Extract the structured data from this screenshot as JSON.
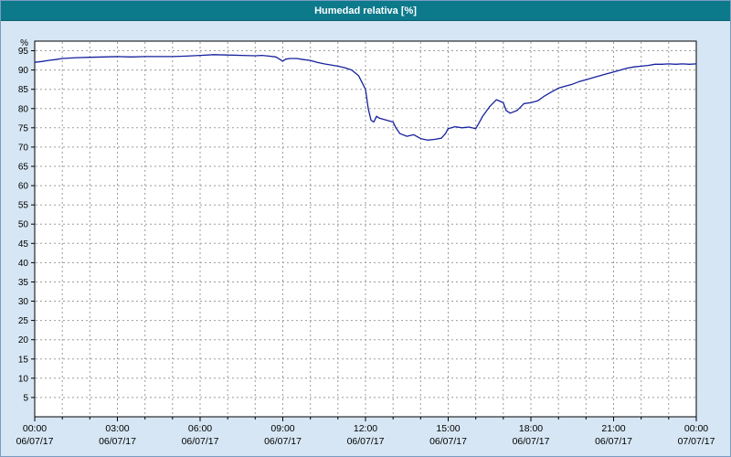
{
  "window": {
    "title": "Humedad relativa [%]"
  },
  "colors": {
    "titlebar": "#0d7a8c",
    "titlebar_text": "#ffffff",
    "background": "#d6e6f4",
    "plot_bg": "#ffffff",
    "grid": "#9b9b9b",
    "axis": "#000000",
    "line": "#16219e"
  },
  "chart_data": {
    "type": "line",
    "title": "Humedad relativa [%]",
    "xlabel": "",
    "ylabel": "%",
    "ylim": [
      0,
      97.5
    ],
    "xlim_hours": [
      0,
      24
    ],
    "grid": "dashed",
    "legend_position": "none",
    "y_ticks": [
      5,
      10,
      15,
      20,
      25,
      30,
      35,
      40,
      45,
      50,
      55,
      60,
      65,
      70,
      75,
      80,
      85,
      90,
      95
    ],
    "x_ticks": [
      {
        "time": "00:00",
        "date": "06/07/17"
      },
      {
        "time": "03:00",
        "date": "06/07/17"
      },
      {
        "time": "06:00",
        "date": "06/07/17"
      },
      {
        "time": "09:00",
        "date": "06/07/17"
      },
      {
        "time": "12:00",
        "date": "06/07/17"
      },
      {
        "time": "15:00",
        "date": "06/07/17"
      },
      {
        "time": "18:00",
        "date": "06/07/17"
      },
      {
        "time": "21:00",
        "date": "06/07/17"
      },
      {
        "time": "00:00",
        "date": "07/07/17"
      }
    ],
    "series": [
      {
        "name": "Humedad relativa",
        "color": "#16219e",
        "x": [
          0,
          0.25,
          0.5,
          0.75,
          1,
          1.5,
          2,
          2.5,
          3,
          3.5,
          4,
          4.5,
          5,
          5.5,
          6,
          6.5,
          7,
          7.5,
          8,
          8.25,
          8.5,
          8.75,
          9,
          9.1,
          9.25,
          9.5,
          9.75,
          10,
          10.25,
          10.5,
          10.75,
          11,
          11.25,
          11.5,
          11.75,
          12,
          12.1,
          12.2,
          12.3,
          12.4,
          12.5,
          12.75,
          13,
          13.1,
          13.25,
          13.5,
          13.75,
          14,
          14.25,
          14.5,
          14.75,
          14.9,
          15,
          15.25,
          15.5,
          15.75,
          16,
          16.1,
          16.25,
          16.5,
          16.75,
          17,
          17.1,
          17.25,
          17.5,
          17.75,
          18,
          18.25,
          18.5,
          18.75,
          19,
          19.25,
          19.5,
          19.75,
          20,
          20.25,
          20.5,
          20.75,
          21,
          21.25,
          21.5,
          21.75,
          22,
          22.25,
          22.5,
          22.75,
          23,
          23.25,
          23.5,
          23.75,
          24
        ],
        "values": [
          92,
          92.2,
          92.5,
          92.7,
          93,
          93.2,
          93.3,
          93.4,
          93.5,
          93.4,
          93.5,
          93.5,
          93.5,
          93.6,
          93.8,
          94,
          93.9,
          93.8,
          93.7,
          93.8,
          93.6,
          93.4,
          92.3,
          92.8,
          93,
          93,
          92.7,
          92.5,
          92,
          91.6,
          91.3,
          91,
          90.6,
          90,
          88.5,
          85,
          80,
          77,
          76.5,
          78,
          77.5,
          77,
          76.5,
          75,
          73.5,
          72.8,
          73.2,
          72.2,
          71.8,
          72,
          72.3,
          73.5,
          74.8,
          75.3,
          75,
          75.2,
          74.8,
          76,
          78,
          80.5,
          82.3,
          81.5,
          79.5,
          78.8,
          79.5,
          81.3,
          81.5,
          82,
          83.3,
          84.3,
          85.3,
          85.8,
          86.3,
          87,
          87.5,
          88,
          88.5,
          89,
          89.5,
          90,
          90.5,
          90.8,
          91,
          91.2,
          91.5,
          91.5,
          91.6,
          91.5,
          91.6,
          91.5,
          91.6
        ]
      }
    ]
  }
}
